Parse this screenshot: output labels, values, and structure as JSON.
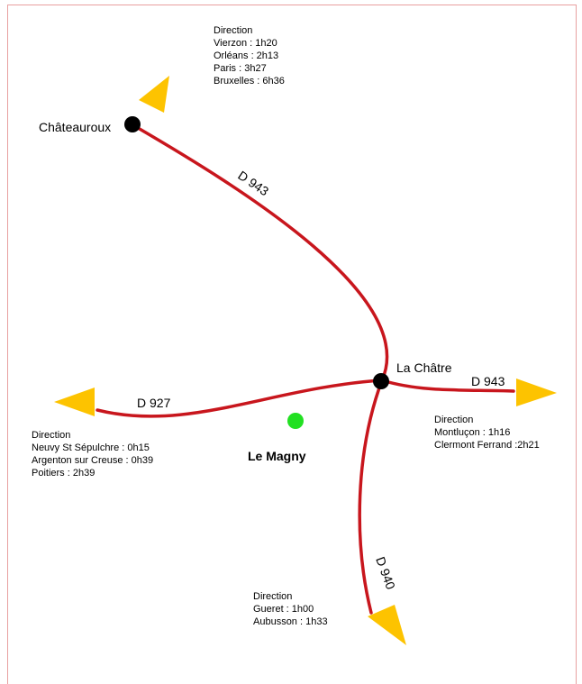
{
  "places": [
    {
      "name": "Châteauroux"
    },
    {
      "name": "La Châtre"
    },
    {
      "name": "Le Magny"
    }
  ],
  "roads": [
    {
      "label": "D 943"
    },
    {
      "label": "D 927"
    },
    {
      "label": "D 943"
    },
    {
      "label": "D 940"
    }
  ],
  "directions": [
    {
      "title": "Direction",
      "destinations": [
        "Vierzon : 1h20",
        "Orléans : 2h13",
        "Paris : 3h27",
        "Bruxelles : 6h36"
      ]
    },
    {
      "title": "Direction",
      "destinations": [
        "Neuvy St Sépulchre : 0h15",
        "Argenton sur Creuse : 0h39",
        "Poitiers : 2h39"
      ]
    },
    {
      "title": "Direction",
      "destinations": [
        "Montluçon : 1h16",
        "Clermont Ferrand :2h21"
      ]
    },
    {
      "title": "Direction",
      "destinations": [
        "Gueret : 1h00",
        "Aubusson : 1h33"
      ]
    }
  ]
}
